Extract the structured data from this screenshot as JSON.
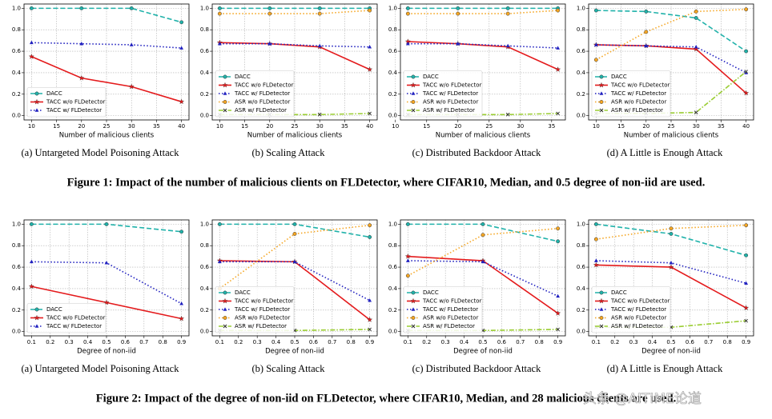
{
  "chart_data": [
    {
      "type": "line",
      "caption": "(a) Untargeted Model Poisoning Attack",
      "xlabel": "Number of malicious clients",
      "x": [
        10,
        20,
        30,
        40
      ],
      "xlim": [
        8.5,
        41.5
      ],
      "xticks": [
        10,
        15,
        20,
        25,
        30,
        35,
        40
      ],
      "ylim": [
        -0.04,
        1.04
      ],
      "yticks": [
        {
          "value": 0,
          "label": "0.0"
        },
        0.2,
        0.4,
        0.6,
        0.8,
        {
          "value": 1,
          "label": "1.0"
        }
      ],
      "grid": true,
      "legend": "lower left",
      "series": [
        {
          "name": "DACC",
          "color": "#20b2aa",
          "dash": "dashed",
          "marker": "circle",
          "values": [
            1.0,
            1.0,
            1.0,
            0.87
          ]
        },
        {
          "name": "TACC w/o FLDetector",
          "color": "#e41a1c",
          "dash": "solid",
          "marker": "star",
          "values": [
            0.55,
            0.35,
            0.27,
            0.13
          ]
        },
        {
          "name": "TACC w/ FLDetector",
          "color": "#1f1fbf",
          "dash": "dotted",
          "marker": "triangle",
          "values": [
            0.68,
            0.67,
            0.66,
            0.63
          ]
        }
      ]
    },
    {
      "type": "line",
      "caption": "(b) Scaling Attack",
      "xlabel": "Number of malicious clients",
      "x": [
        10,
        20,
        30,
        40
      ],
      "xlim": [
        8.5,
        41.5
      ],
      "xticks": [
        10,
        15,
        20,
        25,
        30,
        35,
        40
      ],
      "ylim": [
        -0.04,
        1.04
      ],
      "yticks": [
        {
          "value": 0,
          "label": "0.0"
        },
        0.2,
        0.4,
        0.6,
        0.8,
        {
          "value": 1,
          "label": "1.0"
        }
      ],
      "grid": true,
      "legend": "lower left",
      "series": [
        {
          "name": "DACC",
          "color": "#20b2aa",
          "dash": "dashed",
          "marker": "circle",
          "values": [
            1.0,
            1.0,
            1.0,
            1.0
          ]
        },
        {
          "name": "TACC w/o FLDetector",
          "color": "#e41a1c",
          "dash": "solid",
          "marker": "star",
          "values": [
            0.68,
            0.67,
            0.64,
            0.43
          ]
        },
        {
          "name": "TACC w/ FLDetector",
          "color": "#1f1fbf",
          "dash": "dotted",
          "marker": "triangle",
          "values": [
            0.67,
            0.67,
            0.65,
            0.64
          ]
        },
        {
          "name": "ASR w/o FLDetector",
          "color": "#f5a623",
          "dash": "dotted",
          "marker": "circle",
          "values": [
            0.95,
            0.95,
            0.95,
            0.98
          ]
        },
        {
          "name": "ASR w/ FLDetector",
          "color": "#9acd32",
          "dash": "dashdot",
          "marker": "x",
          "values": [
            0.01,
            0.01,
            0.01,
            0.02
          ]
        }
      ]
    },
    {
      "type": "line",
      "caption": "(c) Distributed Backdoor Attack",
      "xlabel": "Number of malicious clients",
      "x": [
        12,
        20,
        28,
        36
      ],
      "xlim": [
        10.8,
        37.2
      ],
      "xticks": [
        10,
        15,
        20,
        25,
        30,
        35
      ],
      "ylim": [
        -0.04,
        1.04
      ],
      "yticks": [
        {
          "value": 0,
          "label": "0.0"
        },
        0.2,
        0.4,
        0.6,
        0.8,
        {
          "value": 1,
          "label": "1.0"
        }
      ],
      "grid": true,
      "legend": "lower left",
      "series": [
        {
          "name": "DACC",
          "color": "#20b2aa",
          "dash": "dashed",
          "marker": "circle",
          "values": [
            1.0,
            1.0,
            1.0,
            1.0
          ]
        },
        {
          "name": "TACC w/o FLDetector",
          "color": "#e41a1c",
          "dash": "solid",
          "marker": "star",
          "values": [
            0.69,
            0.67,
            0.64,
            0.43
          ]
        },
        {
          "name": "TACC w/ FLDetector",
          "color": "#1f1fbf",
          "dash": "dotted",
          "marker": "triangle",
          "values": [
            0.67,
            0.67,
            0.65,
            0.63
          ]
        },
        {
          "name": "ASR w/o FLDetector",
          "color": "#f5a623",
          "dash": "dotted",
          "marker": "circle",
          "values": [
            0.95,
            0.95,
            0.95,
            0.98
          ]
        },
        {
          "name": "ASR w/ FLDetector",
          "color": "#9acd32",
          "dash": "dashdot",
          "marker": "x",
          "values": [
            0.01,
            0.01,
            0.01,
            0.02
          ]
        }
      ]
    },
    {
      "type": "line",
      "caption": "(d) A Little is Enough Attack",
      "xlabel": "Number of malicious clients",
      "x": [
        10,
        20,
        30,
        40
      ],
      "xlim": [
        8.5,
        41.5
      ],
      "xticks": [
        10,
        15,
        20,
        25,
        30,
        35,
        40
      ],
      "ylim": [
        -0.04,
        1.04
      ],
      "yticks": [
        {
          "value": 0,
          "label": "0.0"
        },
        0.2,
        0.4,
        0.6,
        0.8,
        {
          "value": 1,
          "label": "1.0"
        }
      ],
      "grid": true,
      "legend": "lower left",
      "series": [
        {
          "name": "DACC",
          "color": "#20b2aa",
          "dash": "dashed",
          "marker": "circle",
          "values": [
            0.98,
            0.97,
            0.91,
            0.6
          ]
        },
        {
          "name": "TACC w/o FLDetector",
          "color": "#e41a1c",
          "dash": "solid",
          "marker": "star",
          "values": [
            0.66,
            0.65,
            0.62,
            0.21
          ]
        },
        {
          "name": "TACC w/ FLDetector",
          "color": "#1f1fbf",
          "dash": "dotted",
          "marker": "triangle",
          "values": [
            0.66,
            0.65,
            0.64,
            0.4
          ]
        },
        {
          "name": "ASR w/o FLDetector",
          "color": "#f5a623",
          "dash": "dotted",
          "marker": "circle",
          "values": [
            0.52,
            0.78,
            0.97,
            0.99
          ]
        },
        {
          "name": "ASR w/ FLDetector",
          "color": "#9acd32",
          "dash": "dashdot",
          "marker": "x",
          "values": [
            0.02,
            0.02,
            0.03,
            0.41
          ]
        }
      ]
    },
    {
      "type": "line",
      "caption": "(a) Untargeted Model Poisoning Attack",
      "xlabel": "Degree of non-iid",
      "x": [
        0.1,
        0.5,
        0.9
      ],
      "xlim": [
        0.06,
        0.94
      ],
      "xticks": [
        0.1,
        0.2,
        0.3,
        0.4,
        0.5,
        0.6,
        0.7,
        0.8,
        0.9
      ],
      "ylim": [
        -0.04,
        1.04
      ],
      "yticks": [
        {
          "value": 0,
          "label": "0.0"
        },
        0.2,
        0.4,
        0.6,
        0.8,
        {
          "value": 1,
          "label": "1.0"
        }
      ],
      "grid": true,
      "legend": "lower left",
      "series": [
        {
          "name": "DACC",
          "color": "#20b2aa",
          "dash": "dashed",
          "marker": "circle",
          "values": [
            1.0,
            1.0,
            0.93
          ]
        },
        {
          "name": "TACC w/o FLDetector",
          "color": "#e41a1c",
          "dash": "solid",
          "marker": "star",
          "values": [
            0.42,
            0.27,
            0.12
          ]
        },
        {
          "name": "TACC w/ FLDetector",
          "color": "#1f1fbf",
          "dash": "dotted",
          "marker": "triangle",
          "values": [
            0.65,
            0.64,
            0.26
          ]
        }
      ]
    },
    {
      "type": "line",
      "caption": "(b) Scaling Attack",
      "xlabel": "Degree of non-iid",
      "x": [
        0.1,
        0.5,
        0.9
      ],
      "xlim": [
        0.06,
        0.94
      ],
      "xticks": [
        0.1,
        0.2,
        0.3,
        0.4,
        0.5,
        0.6,
        0.7,
        0.8,
        0.9
      ],
      "ylim": [
        -0.04,
        1.04
      ],
      "yticks": [
        {
          "value": 0,
          "label": "0.0"
        },
        0.2,
        0.4,
        0.6,
        0.8,
        {
          "value": 1,
          "label": "1.0"
        }
      ],
      "grid": true,
      "legend": "lower left",
      "series": [
        {
          "name": "DACC",
          "color": "#20b2aa",
          "dash": "dashed",
          "marker": "circle",
          "values": [
            1.0,
            1.0,
            0.88
          ]
        },
        {
          "name": "TACC w/o FLDetector",
          "color": "#e41a1c",
          "dash": "solid",
          "marker": "star",
          "values": [
            0.66,
            0.65,
            0.11
          ]
        },
        {
          "name": "TACC w/ FLDetector",
          "color": "#1f1fbf",
          "dash": "dotted",
          "marker": "triangle",
          "values": [
            0.65,
            0.65,
            0.29
          ]
        },
        {
          "name": "ASR w/o FLDetector",
          "color": "#f5a623",
          "dash": "dotted",
          "marker": "circle",
          "values": [
            0.4,
            0.91,
            0.99
          ]
        },
        {
          "name": "ASR w/ FLDetector",
          "color": "#9acd32",
          "dash": "dashdot",
          "marker": "x",
          "values": [
            0.01,
            0.01,
            0.02
          ]
        }
      ]
    },
    {
      "type": "line",
      "caption": "(c) Distributed Backdoor Attack",
      "xlabel": "Degree of non-iid",
      "x": [
        0.1,
        0.5,
        0.9
      ],
      "xlim": [
        0.06,
        0.94
      ],
      "xticks": [
        0.1,
        0.2,
        0.3,
        0.4,
        0.5,
        0.6,
        0.7,
        0.8,
        0.9
      ],
      "ylim": [
        -0.04,
        1.04
      ],
      "yticks": [
        {
          "value": 0,
          "label": "0.0"
        },
        0.2,
        0.4,
        0.6,
        0.8,
        {
          "value": 1,
          "label": "1.0"
        }
      ],
      "grid": true,
      "legend": "lower left",
      "series": [
        {
          "name": "DACC",
          "color": "#20b2aa",
          "dash": "dashed",
          "marker": "circle",
          "values": [
            1.0,
            1.0,
            0.84
          ]
        },
        {
          "name": "TACC w/o FLDetector",
          "color": "#e41a1c",
          "dash": "solid",
          "marker": "star",
          "values": [
            0.7,
            0.66,
            0.17
          ]
        },
        {
          "name": "TACC w/ FLDetector",
          "color": "#1f1fbf",
          "dash": "dotted",
          "marker": "triangle",
          "values": [
            0.66,
            0.65,
            0.33
          ]
        },
        {
          "name": "ASR w/o FLDetector",
          "color": "#f5a623",
          "dash": "dotted",
          "marker": "circle",
          "values": [
            0.52,
            0.9,
            0.96
          ]
        },
        {
          "name": "ASR w/ FLDetector",
          "color": "#9acd32",
          "dash": "dashdot",
          "marker": "x",
          "values": [
            0.01,
            0.01,
            0.02
          ]
        }
      ]
    },
    {
      "type": "line",
      "caption": "(d) A Little is Enough Attack",
      "xlabel": "Degree of non-iid",
      "x": [
        0.1,
        0.5,
        0.9
      ],
      "xlim": [
        0.06,
        0.94
      ],
      "xticks": [
        0.1,
        0.2,
        0.3,
        0.4,
        0.5,
        0.6,
        0.7,
        0.8,
        0.9
      ],
      "ylim": [
        -0.04,
        1.04
      ],
      "yticks": [
        {
          "value": 0,
          "label": "0.0"
        },
        0.2,
        0.4,
        0.6,
        0.8,
        {
          "value": 1,
          "label": "1.0"
        }
      ],
      "grid": true,
      "legend": "lower left",
      "series": [
        {
          "name": "DACC",
          "color": "#20b2aa",
          "dash": "dashed",
          "marker": "circle",
          "values": [
            1.0,
            0.91,
            0.71
          ]
        },
        {
          "name": "TACC w/o FLDetector",
          "color": "#e41a1c",
          "dash": "solid",
          "marker": "star",
          "values": [
            0.62,
            0.6,
            0.22
          ]
        },
        {
          "name": "TACC w/ FLDetector",
          "color": "#1f1fbf",
          "dash": "dotted",
          "marker": "triangle",
          "values": [
            0.66,
            0.64,
            0.45
          ]
        },
        {
          "name": "ASR w/o FLDetector",
          "color": "#f5a623",
          "dash": "dotted",
          "marker": "circle",
          "values": [
            0.86,
            0.96,
            0.99
          ]
        },
        {
          "name": "ASR w/ FLDetector",
          "color": "#9acd32",
          "dash": "dashdot",
          "marker": "x",
          "values": [
            0.04,
            0.04,
            0.1
          ]
        }
      ]
    }
  ],
  "figure_captions": [
    "Figure 1: Impact of the number of malicious clients on FLDetector, where CIFAR10, Median, and 0.5 degree of non-iid are used.",
    "Figure 2: Impact of the degree of non-iid on FLDetector, where CIFAR10, Median, and 28 malicious clients are used."
  ],
  "watermark": "头条 @AITIME论道"
}
